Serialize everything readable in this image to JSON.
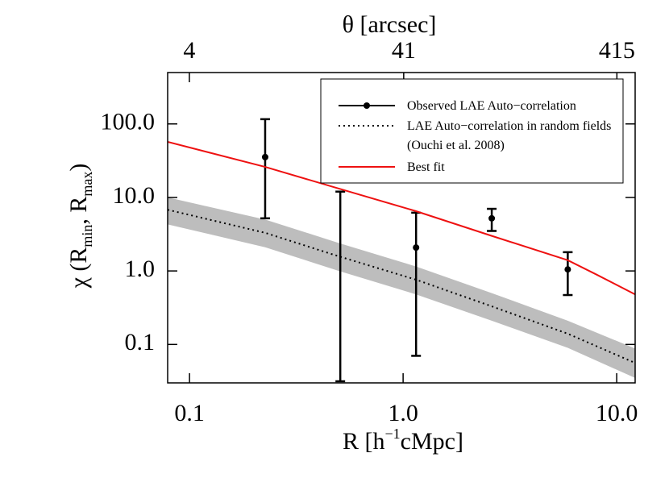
{
  "chart_data": {
    "type": "line",
    "xlabel": [
      "R  [h",
      "−1",
      "cMpc]"
    ],
    "ylabel": [
      "χ (R",
      "min",
      ", R",
      "max",
      ")"
    ],
    "x2label": "θ  [arcsec]",
    "xscale": "log",
    "yscale": "log",
    "x2scale": "log",
    "xlim": [
      0.079,
      12.2
    ],
    "ylim": [
      0.03,
      500
    ],
    "x2lim": [
      3.16,
      506
    ],
    "xticks": [
      0.1,
      {
        "value": 1,
        "label": "1.0"
      },
      {
        "value": 10,
        "label": "10.0"
      }
    ],
    "yticks": [
      0.1,
      {
        "value": 1,
        "label": "1.0"
      },
      {
        "value": 10,
        "label": "10.0"
      },
      {
        "value": 100,
        "label": "100.0"
      }
    ],
    "x2ticks": [
      4,
      41,
      415
    ],
    "series": [
      {
        "name": "Observed LAE Auto−correlation",
        "color": "#000000",
        "style": "points-errorbars",
        "x": [
          0.226,
          0.508,
          1.15,
          2.6,
          5.9
        ],
        "values": [
          35.4,
          null,
          2.08,
          5.2,
          1.05
        ],
        "lower": [
          5.2,
          0.03,
          0.07,
          3.5,
          0.47
        ],
        "upper": [
          116,
          12,
          6.2,
          7.0,
          1.8
        ]
      },
      {
        "name": "LAE Auto−correlation in random fields (Ouchi et al. 2008)",
        "color": "#000000",
        "style": "dotted",
        "x": [
          0.079,
          0.226,
          0.5,
          1.15,
          2.6,
          5.9,
          12.2
        ],
        "values": [
          6.8,
          3.3,
          1.58,
          0.76,
          0.33,
          0.14,
          0.056
        ],
        "band": {
          "color": "#bdbdbd",
          "upper": [
            10,
            5,
            2.4,
            1.15,
            0.5,
            0.21,
            0.088
          ],
          "lower": [
            4.3,
            2.1,
            1.0,
            0.48,
            0.21,
            0.09,
            0.035
          ]
        }
      },
      {
        "name": "Best fit",
        "color": "#ee1111",
        "style": "solid",
        "x": [
          0.079,
          0.226,
          0.5,
          1.15,
          2.6,
          5.9,
          8,
          12.2
        ],
        "values": [
          57,
          26,
          13.2,
          6.5,
          3.0,
          1.4,
          0.9,
          0.48
        ]
      }
    ],
    "legend": "upper right"
  }
}
